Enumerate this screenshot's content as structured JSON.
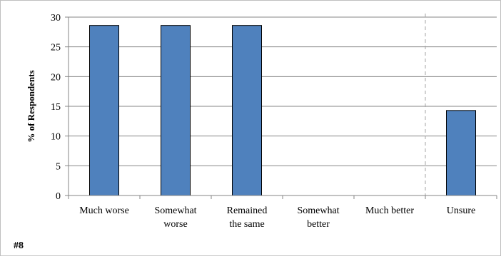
{
  "chart_data": {
    "type": "bar",
    "categories": [
      "Much worse",
      "Somewhat worse",
      "Remained the same",
      "Somewhat better",
      "Much better",
      "Unsure"
    ],
    "category_lines": [
      [
        "Much worse"
      ],
      [
        "Somewhat",
        "worse"
      ],
      [
        "Remained",
        "the same"
      ],
      [
        "Somewhat",
        "better"
      ],
      [
        "Much better"
      ],
      [
        "Unsure"
      ]
    ],
    "values": [
      28.6,
      28.6,
      28.6,
      0,
      0,
      14.3
    ],
    "ylabel": "% of Respondents",
    "xlabel": "",
    "title": "",
    "ylim": [
      0,
      30
    ],
    "yticks": [
      0,
      5,
      10,
      15,
      20,
      25,
      30
    ],
    "grid": true,
    "bar_color": "#4f81bd",
    "bar_edge_color": "#000000",
    "separator_before_category": "Unsure"
  },
  "footnote": "#8"
}
